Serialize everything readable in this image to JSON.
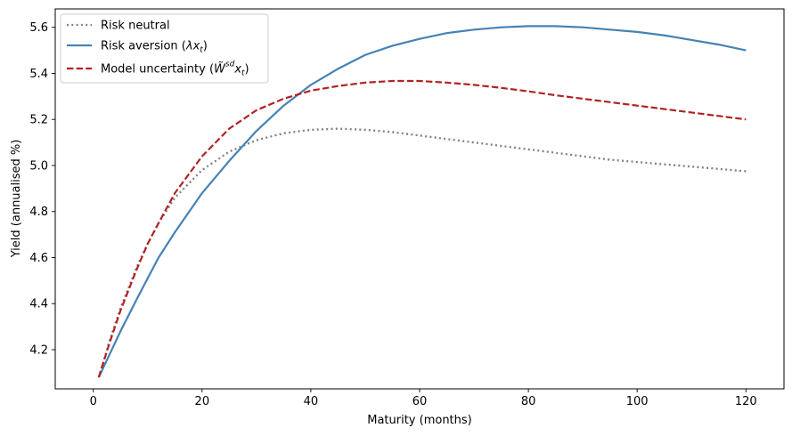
{
  "chart_data": {
    "type": "line",
    "title": "",
    "xlabel": "Maturity (months)",
    "ylabel": "Yield (annualised %)",
    "xlim": [
      -7,
      127
    ],
    "ylim": [
      4.03,
      5.68
    ],
    "xticks": [
      0,
      20,
      40,
      60,
      80,
      100,
      120
    ],
    "yticks": [
      4.2,
      4.4,
      4.6,
      4.8,
      5.0,
      5.2,
      5.4,
      5.6
    ],
    "grid": false,
    "legend_position": "top-left",
    "x": [
      1,
      3,
      5,
      8,
      10,
      12,
      15,
      20,
      25,
      30,
      35,
      40,
      45,
      50,
      55,
      60,
      65,
      70,
      75,
      80,
      85,
      90,
      95,
      100,
      105,
      110,
      115,
      120
    ],
    "series": [
      {
        "name": "Risk neutral",
        "style": "dotted",
        "color": "#808080",
        "values": [
          4.08,
          4.24,
          4.38,
          4.56,
          4.66,
          4.75,
          4.86,
          4.98,
          5.06,
          5.11,
          5.14,
          5.155,
          5.16,
          5.155,
          5.145,
          5.13,
          5.115,
          5.1,
          5.085,
          5.07,
          5.055,
          5.04,
          5.025,
          5.015,
          5.005,
          4.995,
          4.985,
          4.975
        ]
      },
      {
        "name": "Risk aversion (λx_t)",
        "legend_main": "Risk aversion (",
        "legend_math": "λx",
        "legend_sub": "t",
        "legend_close": ")",
        "style": "solid",
        "color": "#4682b4",
        "values": [
          4.08,
          4.18,
          4.28,
          4.42,
          4.51,
          4.6,
          4.71,
          4.88,
          5.02,
          5.15,
          5.26,
          5.35,
          5.42,
          5.48,
          5.52,
          5.55,
          5.575,
          5.59,
          5.6,
          5.605,
          5.605,
          5.6,
          5.59,
          5.58,
          5.565,
          5.545,
          5.525,
          5.5
        ]
      },
      {
        "name": "Model uncertainty (W̃^sd x_t)",
        "legend_main": "Model uncertainty (",
        "legend_math": "W̃",
        "legend_sup": "sd",
        "legend_math2": "x",
        "legend_sub": "t",
        "legend_close": ")",
        "style": "dashed",
        "color": "#b22222",
        "values": [
          4.08,
          4.23,
          4.37,
          4.55,
          4.66,
          4.75,
          4.88,
          5.04,
          5.16,
          5.24,
          5.29,
          5.325,
          5.345,
          5.36,
          5.367,
          5.367,
          5.36,
          5.35,
          5.337,
          5.322,
          5.305,
          5.29,
          5.275,
          5.26,
          5.245,
          5.23,
          5.215,
          5.2
        ]
      }
    ]
  }
}
